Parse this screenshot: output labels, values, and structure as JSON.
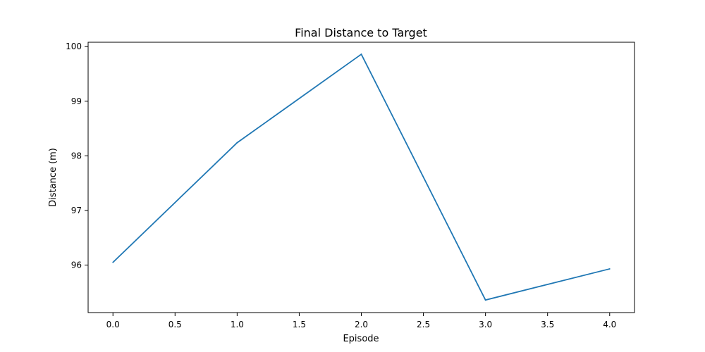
{
  "chart_data": {
    "type": "line",
    "title": "Final Distance to Target",
    "xlabel": "Episode",
    "ylabel": "Distance (m)",
    "xlim": [
      -0.2,
      4.2
    ],
    "ylim": [
      95.13,
      100.08
    ],
    "x_ticks": [
      0.0,
      0.5,
      1.0,
      1.5,
      2.0,
      2.5,
      3.0,
      3.5,
      4.0
    ],
    "x_tick_labels": [
      "0.0",
      "0.5",
      "1.0",
      "1.5",
      "2.0",
      "2.5",
      "3.0",
      "3.5",
      "4.0"
    ],
    "y_ticks": [
      96,
      97,
      98,
      99,
      100
    ],
    "y_tick_labels": [
      "96",
      "97",
      "98",
      "99",
      "100"
    ],
    "grid": false,
    "series": [
      {
        "x": [
          0,
          1,
          2,
          3,
          4
        ],
        "values": [
          96.05,
          98.24,
          99.86,
          95.36,
          95.93
        ],
        "color": "#1f77b4"
      }
    ]
  }
}
